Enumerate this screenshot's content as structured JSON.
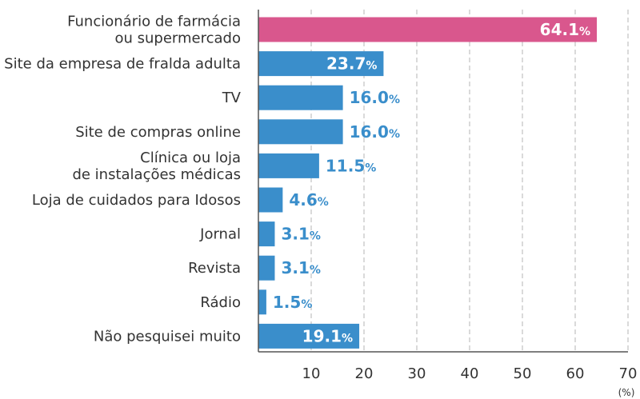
{
  "chart_data": {
    "type": "bar",
    "orientation": "horizontal",
    "categories": [
      [
        "Funcionário de farmácia",
        "ou supermercado"
      ],
      [
        "Site da empresa de fralda adulta"
      ],
      [
        "TV"
      ],
      [
        "Site de compras online"
      ],
      [
        "Clínica ou loja",
        "de instalações médicas"
      ],
      [
        "Loja de cuidados para Idosos"
      ],
      [
        "Jornal"
      ],
      [
        "Revista"
      ],
      [
        "Rádio"
      ],
      [
        "Não pesquisei muito"
      ]
    ],
    "values": [
      64.1,
      23.7,
      16.0,
      16.0,
      11.5,
      4.6,
      3.1,
      3.1,
      1.5,
      19.1
    ],
    "value_labels": [
      "64.1",
      "23.7",
      "16.0",
      "16.0",
      "11.5",
      "4.6",
      "3.1",
      "3.1",
      "1.5",
      "19.1"
    ],
    "value_suffix": "%",
    "highlight_index": 0,
    "xlim": [
      0,
      70
    ],
    "xticks": [
      10,
      20,
      30,
      40,
      50,
      60,
      70
    ],
    "x_unit": "(%)",
    "grid": "vertical-dashed",
    "colors": {
      "bar": "#3a8ecb",
      "highlight_bar": "#d9578d",
      "value_text": "#3a8ecb",
      "value_text_inside": "#ffffff",
      "grid": "#b5b5b5",
      "axis": "#555555"
    }
  }
}
